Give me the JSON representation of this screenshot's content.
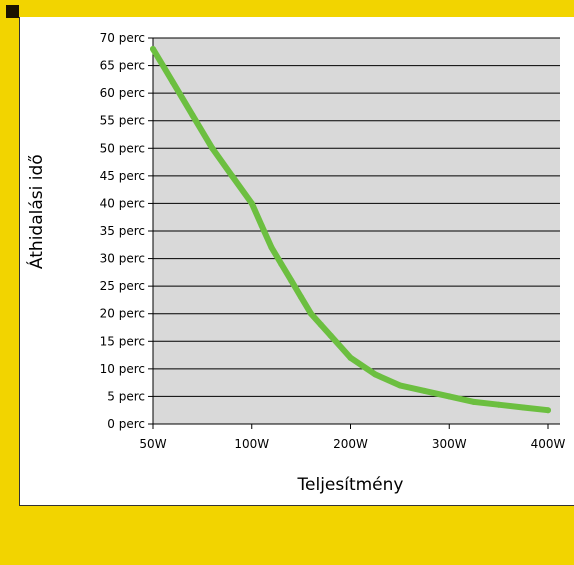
{
  "colors": {
    "background": "#f2d400",
    "panel": "#ffffff",
    "plot_area": "#d9d9d9",
    "grid": "#000000",
    "series": "#6cbf40"
  },
  "chart_data": {
    "type": "line",
    "title": "",
    "xlabel": "Teljesítmény",
    "ylabel": "Áthidalási idő",
    "x_ticks": [
      "50W",
      "100W",
      "200W",
      "300W",
      "400W"
    ],
    "y_ticks": [
      "0 perc",
      "5 perc",
      "10 perc",
      "15 perc",
      "20 perc",
      "25 perc",
      "30 perc",
      "35 perc",
      "40 perc",
      "45 perc",
      "50 perc",
      "55 perc",
      "60 perc",
      "65 perc",
      "70 perc"
    ],
    "ylim": [
      0,
      70
    ],
    "grid": true,
    "legend": "none",
    "series": [
      {
        "x": [
          50,
          60,
          70,
          80,
          90,
          100,
          110,
          120,
          130,
          140,
          150,
          160,
          170,
          180,
          200,
          225,
          250,
          275,
          300,
          325,
          350,
          375,
          400
        ],
        "values": [
          68,
          62,
          56,
          50,
          45,
          40,
          36,
          32,
          29,
          26,
          23,
          20,
          18,
          16,
          12,
          9,
          7,
          6,
          5,
          4,
          3.5,
          3,
          2.5
        ]
      }
    ]
  }
}
